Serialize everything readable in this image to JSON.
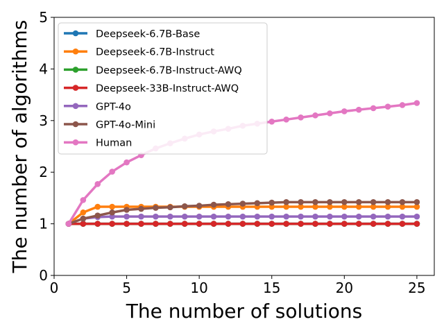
{
  "chart_data": {
    "type": "line",
    "title": "",
    "xlabel": "The number of solutions",
    "ylabel": "The number of algorithms",
    "xlim": [
      0,
      26.2
    ],
    "ylim": [
      0,
      5
    ],
    "xticks": [
      0,
      5,
      10,
      15,
      20,
      25
    ],
    "yticks": [
      0,
      1,
      2,
      3,
      4,
      5
    ],
    "grid": false,
    "legend_position": "top-left",
    "x": [
      1,
      2,
      3,
      4,
      5,
      6,
      7,
      8,
      9,
      10,
      11,
      12,
      13,
      14,
      15,
      16,
      17,
      18,
      19,
      20,
      21,
      22,
      23,
      24,
      25
    ],
    "series": [
      {
        "name": "Deepseek-6.7B-Base",
        "color": "#1f77b4",
        "values": [
          1,
          1,
          1,
          1,
          1,
          1,
          1,
          1,
          1,
          1,
          1,
          1,
          1,
          1,
          1,
          1,
          1,
          1,
          1,
          1,
          1,
          1,
          1,
          1,
          1
        ]
      },
      {
        "name": "Deepseek-6.7B-Instruct",
        "color": "#ff7f0e",
        "values": [
          1,
          1.22,
          1.33,
          1.33,
          1.33,
          1.33,
          1.33,
          1.33,
          1.33,
          1.33,
          1.33,
          1.33,
          1.33,
          1.33,
          1.33,
          1.33,
          1.33,
          1.33,
          1.33,
          1.33,
          1.33,
          1.33,
          1.33,
          1.33,
          1.33
        ]
      },
      {
        "name": "Deepseek-6.7B-Instruct-AWQ",
        "color": "#2ca02c",
        "values": [
          1,
          1,
          1,
          1,
          1,
          1,
          1,
          1,
          1,
          1,
          1,
          1,
          1,
          1,
          1,
          1,
          1,
          1,
          1,
          1,
          1,
          1,
          1,
          1,
          1
        ]
      },
      {
        "name": "Deepseek-33B-Instruct-AWQ",
        "color": "#d62728",
        "values": [
          1,
          1,
          1,
          1,
          1,
          1,
          1,
          1,
          1,
          1,
          1,
          1,
          1,
          1,
          1,
          1,
          1,
          1,
          1,
          1,
          1,
          1,
          1,
          1,
          1
        ]
      },
      {
        "name": "GPT-4o",
        "color": "#9467bd",
        "values": [
          1,
          1.1,
          1.13,
          1.14,
          1.14,
          1.14,
          1.14,
          1.14,
          1.14,
          1.14,
          1.14,
          1.14,
          1.14,
          1.14,
          1.14,
          1.14,
          1.14,
          1.14,
          1.14,
          1.14,
          1.14,
          1.14,
          1.14,
          1.14,
          1.14
        ]
      },
      {
        "name": "GPT-4o-Mini",
        "color": "#8c564b",
        "values": [
          1,
          1.1,
          1.16,
          1.22,
          1.27,
          1.29,
          1.31,
          1.32,
          1.34,
          1.35,
          1.37,
          1.38,
          1.39,
          1.4,
          1.41,
          1.42,
          1.42,
          1.42,
          1.42,
          1.42,
          1.42,
          1.42,
          1.42,
          1.42,
          1.42
        ]
      },
      {
        "name": "Human",
        "color": "#e377c2",
        "values": [
          1,
          1.46,
          1.77,
          2.01,
          2.19,
          2.33,
          2.46,
          2.56,
          2.65,
          2.73,
          2.79,
          2.84,
          2.9,
          2.94,
          2.98,
          3.02,
          3.06,
          3.1,
          3.14,
          3.18,
          3.21,
          3.24,
          3.27,
          3.3,
          3.34
        ]
      }
    ]
  }
}
